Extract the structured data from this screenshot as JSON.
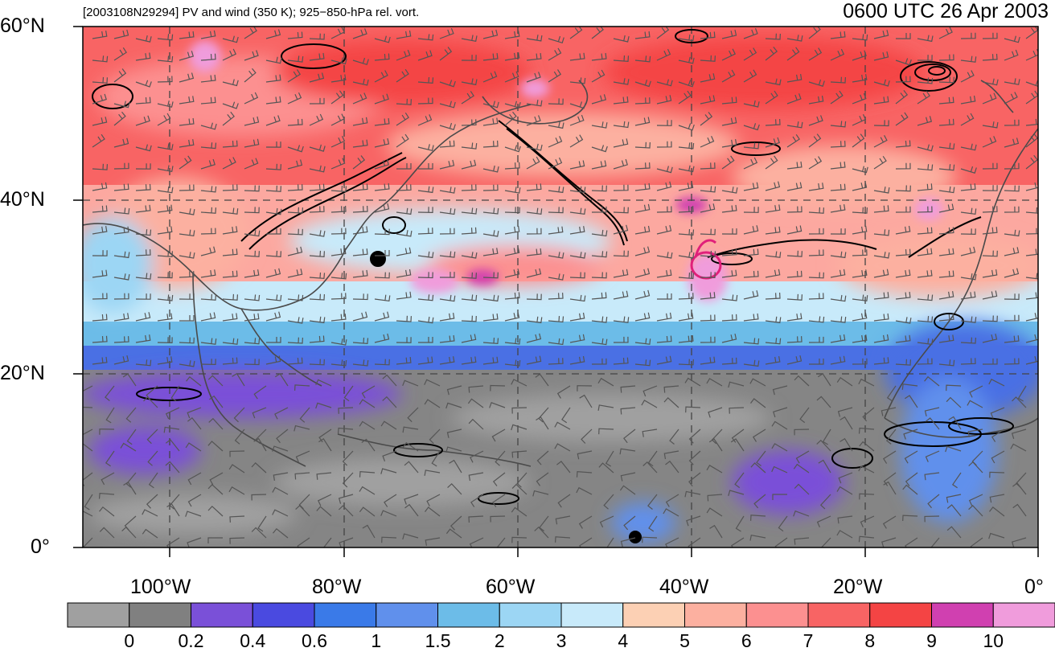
{
  "header": {
    "title_left": "[2003108N29294] PV and wind (350 K); 925−850-hPa rel. vort.",
    "title_right": "0600 UTC 26 Apr 2003"
  },
  "map": {
    "lat_labels": [
      "60°N",
      "40°N",
      "20°N",
      "0°"
    ],
    "lon_labels": [
      "100°W",
      "80°W",
      "60°W",
      "40°W",
      "20°W",
      "0°"
    ]
  },
  "colorbar": {
    "colors": [
      "#a0a0a0",
      "#808080",
      "#7a50d8",
      "#4a4ae0",
      "#3a7ae8",
      "#6090ec",
      "#6cbce8",
      "#9cd6f4",
      "#c8eafa",
      "#fcd0b4",
      "#fcb0a0",
      "#fc9090",
      "#f86464",
      "#f44444",
      "#d040b0",
      "#f09cdc"
    ],
    "labels": [
      "0",
      "0.2",
      "0.4",
      "0.6",
      "1",
      "1.5",
      "2",
      "3",
      "4",
      "5",
      "6",
      "7",
      "8",
      "9",
      "10"
    ]
  }
}
